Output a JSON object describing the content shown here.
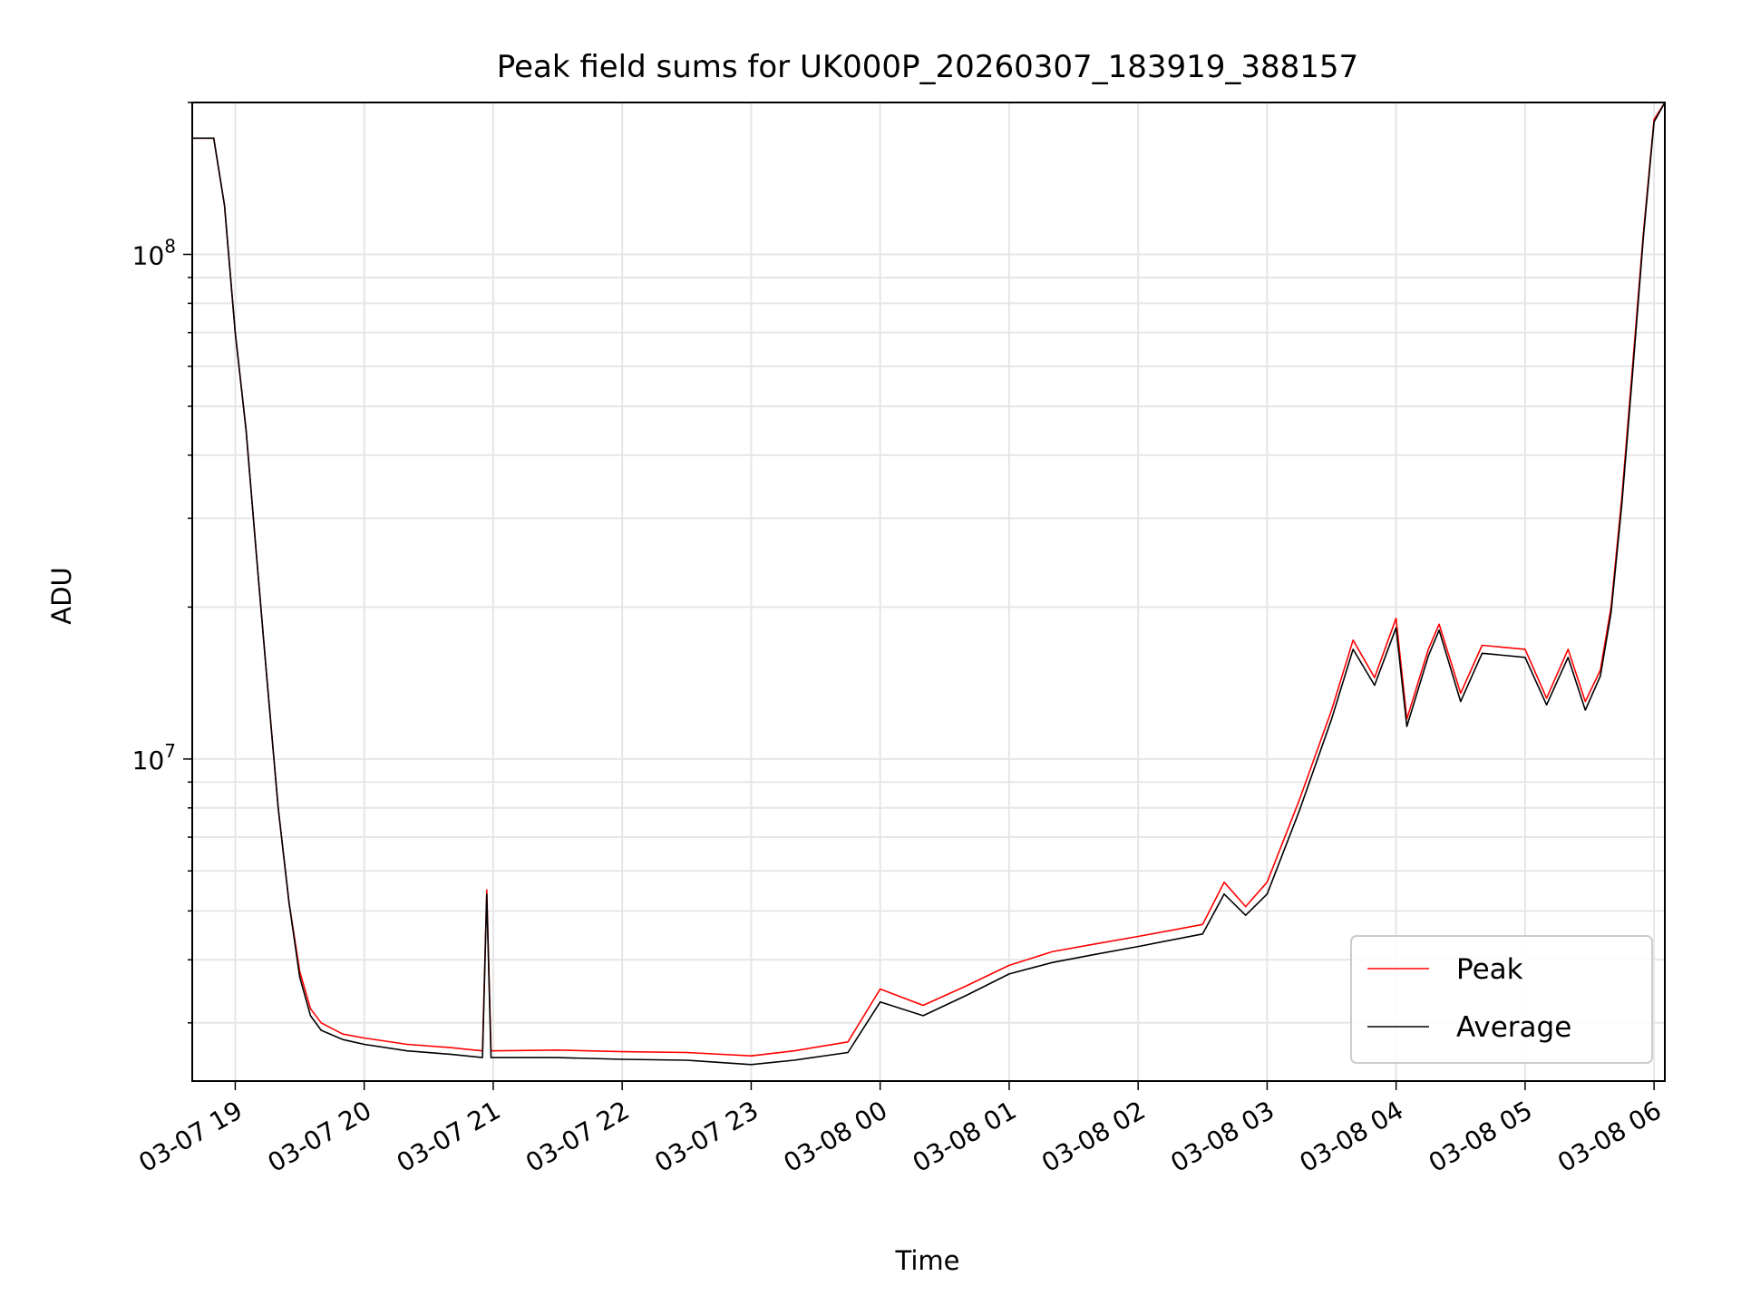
{
  "chart_data": {
    "type": "line",
    "title": "Peak field sums for UK000P_20260307_183919_388157",
    "xlabel": "Time",
    "ylabel": "ADU",
    "x_axis": {
      "kind": "datetime",
      "range": [
        "2026-03-07 18:40",
        "2026-03-08 06:05"
      ],
      "tick_labels": [
        "03-07 19",
        "03-07 20",
        "03-07 21",
        "03-07 22",
        "03-07 23",
        "03-08 00",
        "03-08 01",
        "03-08 02",
        "03-08 03",
        "03-08 04",
        "03-08 05",
        "03-08 06"
      ],
      "tick_values": [
        "2026-03-07 19:00",
        "2026-03-07 20:00",
        "2026-03-07 21:00",
        "2026-03-07 22:00",
        "2026-03-07 23:00",
        "2026-03-08 00:00",
        "2026-03-08 01:00",
        "2026-03-08 02:00",
        "2026-03-08 03:00",
        "2026-03-08 04:00",
        "2026-03-08 05:00",
        "2026-03-08 06:00"
      ]
    },
    "y_axis": {
      "scale": "log",
      "range": [
        2300000,
        200000000
      ],
      "major_ticks": [
        {
          "value": 10000000,
          "base": "10",
          "exp": "7"
        },
        {
          "value": 100000000,
          "base": "10",
          "exp": "8"
        }
      ]
    },
    "grid": true,
    "legend": {
      "position": "lower-right"
    },
    "series": [
      {
        "name": "Peak",
        "color": "#ff0000",
        "points": [
          [
            "2026-03-07 18:40",
            170000000
          ],
          [
            "2026-03-07 18:50",
            170000000
          ],
          [
            "2026-03-07 18:55",
            125000000
          ],
          [
            "2026-03-07 19:00",
            70000000
          ],
          [
            "2026-03-07 19:05",
            45000000
          ],
          [
            "2026-03-07 19:10",
            25000000
          ],
          [
            "2026-03-07 19:15",
            14000000
          ],
          [
            "2026-03-07 19:20",
            8000000
          ],
          [
            "2026-03-07 19:25",
            5200000
          ],
          [
            "2026-03-07 19:30",
            3800000
          ],
          [
            "2026-03-07 19:35",
            3200000
          ],
          [
            "2026-03-07 19:40",
            3000000
          ],
          [
            "2026-03-07 19:50",
            2850000
          ],
          [
            "2026-03-07 20:00",
            2800000
          ],
          [
            "2026-03-07 20:20",
            2720000
          ],
          [
            "2026-03-07 20:40",
            2680000
          ],
          [
            "2026-03-07 20:55",
            2640000
          ],
          [
            "2026-03-07 20:57",
            5500000
          ],
          [
            "2026-03-07 20:59",
            2640000
          ],
          [
            "2026-03-07 21:30",
            2650000
          ],
          [
            "2026-03-07 22:00",
            2630000
          ],
          [
            "2026-03-07 22:30",
            2620000
          ],
          [
            "2026-03-07 23:00",
            2580000
          ],
          [
            "2026-03-07 23:20",
            2640000
          ],
          [
            "2026-03-07 23:45",
            2750000
          ],
          [
            "2026-03-08 00:00",
            3500000
          ],
          [
            "2026-03-08 00:20",
            3250000
          ],
          [
            "2026-03-08 00:40",
            3550000
          ],
          [
            "2026-03-08 01:00",
            3900000
          ],
          [
            "2026-03-08 01:20",
            4150000
          ],
          [
            "2026-03-08 01:40",
            4300000
          ],
          [
            "2026-03-08 02:00",
            4450000
          ],
          [
            "2026-03-08 02:30",
            4700000
          ],
          [
            "2026-03-08 02:40",
            5700000
          ],
          [
            "2026-03-08 02:50",
            5100000
          ],
          [
            "2026-03-08 03:00",
            5700000
          ],
          [
            "2026-03-08 03:15",
            8300000
          ],
          [
            "2026-03-08 03:30",
            12500000
          ],
          [
            "2026-03-08 03:40",
            17200000
          ],
          [
            "2026-03-08 03:50",
            14500000
          ],
          [
            "2026-03-08 04:00",
            19000000
          ],
          [
            "2026-03-08 04:05",
            12000000
          ],
          [
            "2026-03-08 04:15",
            16500000
          ],
          [
            "2026-03-08 04:20",
            18500000
          ],
          [
            "2026-03-08 04:30",
            13500000
          ],
          [
            "2026-03-08 04:40",
            16800000
          ],
          [
            "2026-03-08 05:00",
            16500000
          ],
          [
            "2026-03-08 05:10",
            13200000
          ],
          [
            "2026-03-08 05:20",
            16500000
          ],
          [
            "2026-03-08 05:28",
            13000000
          ],
          [
            "2026-03-08 05:35",
            15000000
          ],
          [
            "2026-03-08 05:40",
            20000000
          ],
          [
            "2026-03-08 05:45",
            33000000
          ],
          [
            "2026-03-08 05:50",
            60000000
          ],
          [
            "2026-03-08 05:55",
            110000000
          ],
          [
            "2026-03-08 06:00",
            185000000
          ],
          [
            "2026-03-08 06:05",
            200000000
          ]
        ]
      },
      {
        "name": "Average",
        "color": "#000000",
        "points": [
          [
            "2026-03-07 18:40",
            170000000
          ],
          [
            "2026-03-07 18:50",
            170000000
          ],
          [
            "2026-03-07 18:55",
            125000000
          ],
          [
            "2026-03-07 19:00",
            70000000
          ],
          [
            "2026-03-07 19:05",
            45000000
          ],
          [
            "2026-03-07 19:10",
            25000000
          ],
          [
            "2026-03-07 19:15",
            14000000
          ],
          [
            "2026-03-07 19:20",
            8000000
          ],
          [
            "2026-03-07 19:25",
            5200000
          ],
          [
            "2026-03-07 19:30",
            3700000
          ],
          [
            "2026-03-07 19:35",
            3100000
          ],
          [
            "2026-03-07 19:40",
            2900000
          ],
          [
            "2026-03-07 19:50",
            2780000
          ],
          [
            "2026-03-07 20:00",
            2720000
          ],
          [
            "2026-03-07 20:20",
            2640000
          ],
          [
            "2026-03-07 20:40",
            2600000
          ],
          [
            "2026-03-07 20:55",
            2560000
          ],
          [
            "2026-03-07 20:57",
            5400000
          ],
          [
            "2026-03-07 20:59",
            2560000
          ],
          [
            "2026-03-07 21:30",
            2560000
          ],
          [
            "2026-03-07 22:00",
            2540000
          ],
          [
            "2026-03-07 22:30",
            2530000
          ],
          [
            "2026-03-07 23:00",
            2480000
          ],
          [
            "2026-03-07 23:20",
            2530000
          ],
          [
            "2026-03-07 23:45",
            2620000
          ],
          [
            "2026-03-08 00:00",
            3300000
          ],
          [
            "2026-03-08 00:20",
            3100000
          ],
          [
            "2026-03-08 00:40",
            3400000
          ],
          [
            "2026-03-08 01:00",
            3750000
          ],
          [
            "2026-03-08 01:20",
            3950000
          ],
          [
            "2026-03-08 01:40",
            4100000
          ],
          [
            "2026-03-08 02:00",
            4250000
          ],
          [
            "2026-03-08 02:30",
            4500000
          ],
          [
            "2026-03-08 02:40",
            5400000
          ],
          [
            "2026-03-08 02:50",
            4900000
          ],
          [
            "2026-03-08 03:00",
            5400000
          ],
          [
            "2026-03-08 03:15",
            7900000
          ],
          [
            "2026-03-08 03:30",
            12000000
          ],
          [
            "2026-03-08 03:40",
            16500000
          ],
          [
            "2026-03-08 03:50",
            14000000
          ],
          [
            "2026-03-08 04:00",
            18200000
          ],
          [
            "2026-03-08 04:05",
            11600000
          ],
          [
            "2026-03-08 04:15",
            16000000
          ],
          [
            "2026-03-08 04:20",
            18000000
          ],
          [
            "2026-03-08 04:30",
            13000000
          ],
          [
            "2026-03-08 04:40",
            16200000
          ],
          [
            "2026-03-08 05:00",
            15900000
          ],
          [
            "2026-03-08 05:10",
            12800000
          ],
          [
            "2026-03-08 05:20",
            15900000
          ],
          [
            "2026-03-08 05:28",
            12500000
          ],
          [
            "2026-03-08 05:35",
            14600000
          ],
          [
            "2026-03-08 05:40",
            19500000
          ],
          [
            "2026-03-08 05:45",
            32000000
          ],
          [
            "2026-03-08 05:50",
            58000000
          ],
          [
            "2026-03-08 05:55",
            108000000
          ],
          [
            "2026-03-08 06:00",
            183000000
          ],
          [
            "2026-03-08 06:05",
            200000000
          ]
        ]
      }
    ]
  }
}
